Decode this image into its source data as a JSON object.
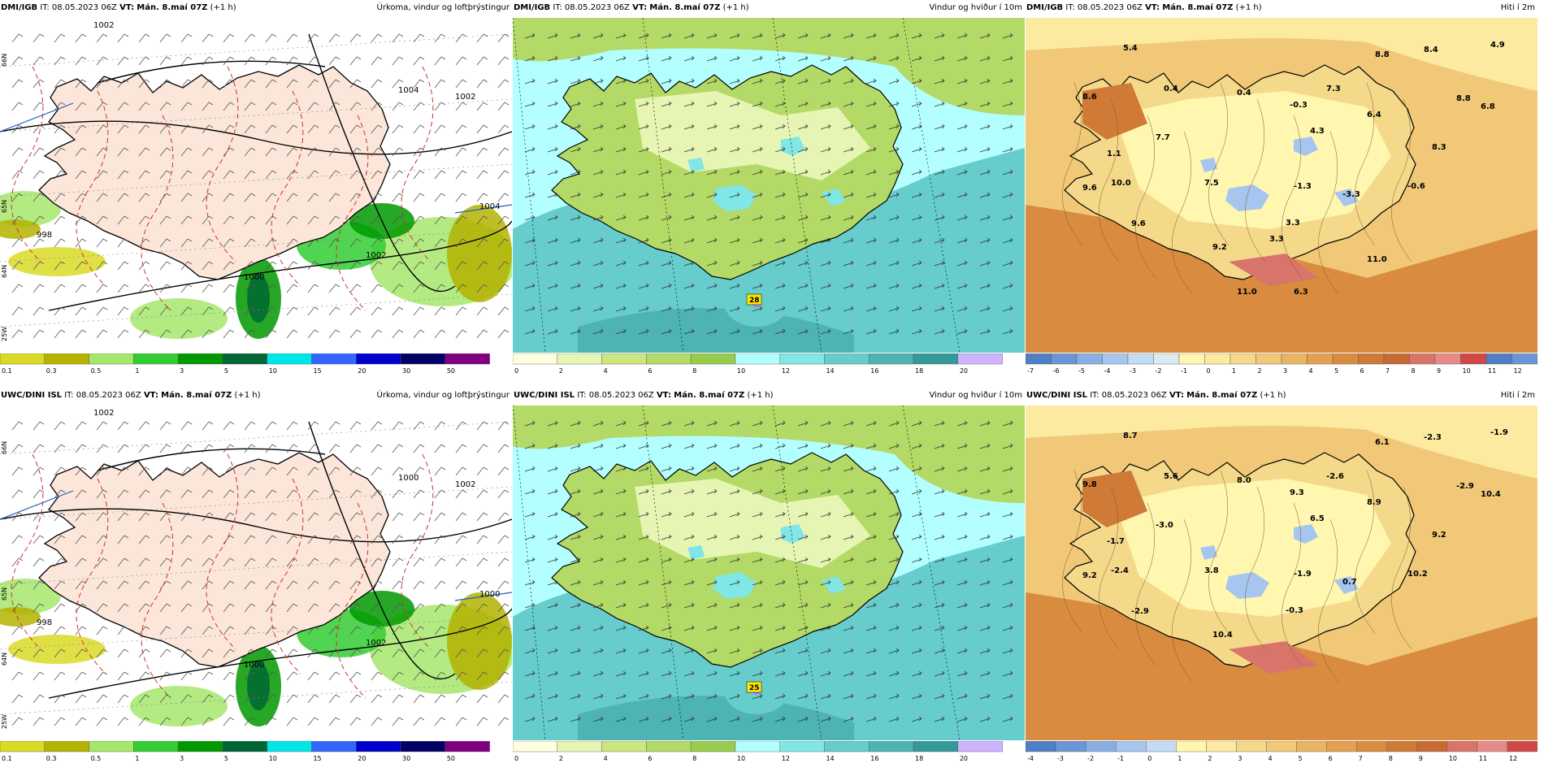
{
  "panels": [
    {
      "model": "DMI/IGB",
      "it_label": "IT:",
      "it_value": "08.05.2023 06Z",
      "vt_label": "VT:",
      "vt_value": "Mán. 8.maí 07Z",
      "lead": "(+1 h)",
      "title": "Úrkoma, vindur og loftþrýstingur",
      "kind": "precip",
      "isobars": [
        "1002",
        "1004",
        "1002",
        "998",
        "1000",
        "1002",
        "1004"
      ],
      "lat_labels": [
        "66N",
        "65N",
        "64N",
        "25W"
      ],
      "colorbar": [
        "0.1",
        "0.3",
        "0.5",
        "1",
        "3",
        "5",
        "10",
        "15",
        "20",
        "30",
        "50"
      ]
    },
    {
      "model": "DMI/IGB",
      "it_label": "IT:",
      "it_value": "08.05.2023 06Z",
      "vt_label": "VT:",
      "vt_value": "Mán. 8.maí 07Z",
      "lead": "(+1 h)",
      "title": "Vindur og hviður í 10m",
      "kind": "wind",
      "max_label": "28",
      "colorbar": [
        "0",
        "2",
        "4",
        "6",
        "8",
        "10",
        "12",
        "14",
        "16",
        "18",
        "20"
      ]
    },
    {
      "model": "DMI/IGB",
      "it_label": "IT:",
      "it_value": "08.05.2023 06Z",
      "vt_label": "VT:",
      "vt_value": "Mán. 8.maí 07Z",
      "lead": "(+1 h)",
      "title": "Hiti í 2m",
      "kind": "temp",
      "temps": [
        "5.4",
        "8.6",
        "0.4",
        "0.4",
        "7.7",
        "1.1",
        "-0.3",
        "7.3",
        "4.3",
        "6.4",
        "8.8",
        "8.4",
        "4.9",
        "8.8",
        "6.8",
        "8.3",
        "9.6",
        "10.0",
        "7.5",
        "-1.3",
        "-3.3",
        "-0.6",
        "3.3",
        "9.6",
        "9.2",
        "3.3",
        "11.0",
        "11.0",
        "6.3"
      ],
      "colorbar": [
        "-7",
        "-6",
        "-5",
        "-4",
        "-3",
        "-2",
        "-1",
        "0",
        "1",
        "2",
        "3",
        "4",
        "5",
        "6",
        "7",
        "8",
        "9",
        "10",
        "11",
        "12"
      ]
    },
    {
      "model": "UWC/DINI ISL",
      "it_label": "IT:",
      "it_value": "08.05.2023 06Z",
      "vt_label": "VT:",
      "vt_value": "Mán. 8.maí 07Z",
      "lead": "(+1 h)",
      "title": "Úrkoma, vindur og loftþrýstingur",
      "kind": "precip",
      "isobars": [
        "1002",
        "1000",
        "1002",
        "998",
        "1000",
        "1002",
        "1000"
      ],
      "lat_labels": [
        "66N",
        "65N",
        "64N",
        "25W"
      ],
      "colorbar": [
        "0.1",
        "0.3",
        "0.5",
        "1",
        "3",
        "5",
        "10",
        "15",
        "20",
        "30",
        "50"
      ]
    },
    {
      "model": "UWC/DINI ISL",
      "it_label": "IT:",
      "it_value": "08.05.2023 06Z",
      "vt_label": "VT:",
      "vt_value": "Mán. 8.maí 07Z",
      "lead": "(+1 h)",
      "title": "Vindur og hviður í 10m",
      "kind": "wind",
      "max_label": "25",
      "colorbar": [
        "0",
        "2",
        "4",
        "6",
        "8",
        "10",
        "12",
        "14",
        "16",
        "18",
        "20"
      ]
    },
    {
      "model": "UWC/DINI ISL",
      "it_label": "IT:",
      "it_value": "08.05.2023 06Z",
      "vt_label": "VT:",
      "vt_value": "Mán. 8.maí 07Z",
      "lead": "(+1 h)",
      "title": "Hiti í 2m",
      "kind": "temp",
      "temps": [
        "8.7",
        "9.8",
        "5.6",
        "8.0",
        "-3.0",
        "-1.7",
        "9.3",
        "-2.6",
        "6.5",
        "8.9",
        "6.1",
        "-2.3",
        "-1.9",
        "-2.9",
        "10.4",
        "9.2",
        "9.2",
        "-2.4",
        "3.8",
        "-1.9",
        "0.7",
        "10.2",
        "-0.3",
        "-2.9",
        "10.4"
      ],
      "colorbar": [
        "-4",
        "-3",
        "-2",
        "-1",
        "0",
        "1",
        "2",
        "3",
        "4",
        "5",
        "6",
        "7",
        "8",
        "9",
        "10",
        "11",
        "12"
      ]
    }
  ],
  "colors": {
    "precip": [
      "#d9d926",
      "#b3b300",
      "#a6e66b",
      "#33cc33",
      "#009900",
      "#006633",
      "#00e6e6",
      "#3366ff",
      "#0000cc",
      "#000066",
      "#800080",
      "#ff0080",
      "#ff0000"
    ],
    "wind": [
      "#ffffe0",
      "#e6f5b3",
      "#cce680",
      "#b3d966",
      "#99cc4d",
      "#b3ffff",
      "#80e6e6",
      "#66cccc",
      "#4db3b3",
      "#339999",
      "#d0b3ff",
      "#a680ff",
      "#8060e6"
    ],
    "temp_cold": [
      "#4f7fc4",
      "#6b95d4",
      "#88aee3",
      "#a6c6ef",
      "#c2dcf7",
      "#dceaf2"
    ],
    "temp_warm": [
      "#fff6b0",
      "#fbeaa0",
      "#f5d98a",
      "#f0c878",
      "#e9b464",
      "#e2a050",
      "#d98c40",
      "#cf7a36",
      "#c76a34",
      "#d8746a",
      "#e68a8a",
      "#d04848"
    ]
  }
}
